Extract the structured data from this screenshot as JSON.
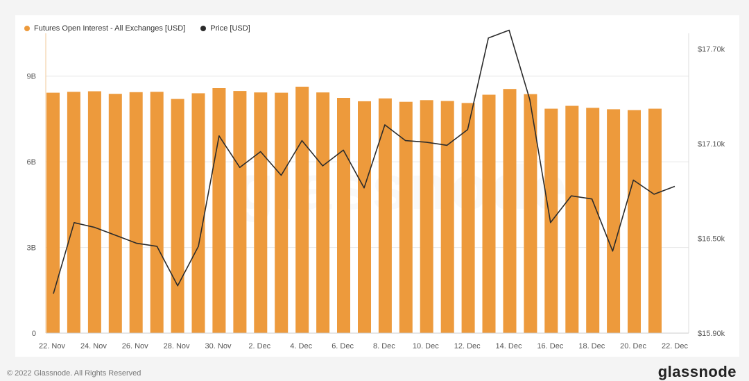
{
  "legend": {
    "oi_label": "Futures Open Interest - All Exchanges [USD]",
    "price_label": "Price [USD]"
  },
  "colors": {
    "bar": "#ED9A3C",
    "line": "#2b2b2b",
    "grid": "#e6e6e6",
    "axis_text": "#555555"
  },
  "footer": {
    "copyright": "© 2022 Glassnode. All Rights Reserved",
    "brand": "glassnode"
  },
  "watermark": "glassnode",
  "chart_data": {
    "type": "bar",
    "x_tick_labels": [
      "22. Nov",
      "24. Nov",
      "26. Nov",
      "28. Nov",
      "30. Nov",
      "2. Dec",
      "4. Dec",
      "6. Dec",
      "8. Dec",
      "10. Dec",
      "12. Dec",
      "14. Dec",
      "16. Dec",
      "18. Dec",
      "20. Dec",
      "22. Dec"
    ],
    "y_left": {
      "ticks": [
        0,
        3,
        6,
        9
      ],
      "tick_labels": [
        "0",
        "3B",
        "6B",
        "9B"
      ],
      "ylim": [
        0,
        10.5
      ]
    },
    "y_right": {
      "ticks": [
        15.9,
        16.5,
        17.1,
        17.7
      ],
      "tick_labels": [
        "$15.90k",
        "$16.50k",
        "$17.10k",
        "$17.70k"
      ],
      "ylim": [
        15.9,
        17.8
      ]
    },
    "series": [
      {
        "name": "Futures Open Interest - All Exchanges [USD]",
        "type": "bar",
        "axis": "left",
        "values": [
          8.42,
          8.45,
          8.47,
          8.38,
          8.44,
          8.45,
          8.2,
          8.4,
          8.58,
          8.48,
          8.43,
          8.42,
          8.63,
          8.43,
          8.24,
          8.12,
          8.22,
          8.1,
          8.16,
          8.13,
          8.06,
          8.35,
          8.55,
          8.37,
          7.86,
          7.96,
          7.89,
          7.84,
          7.81,
          7.86
        ]
      },
      {
        "name": "Price [USD]",
        "type": "line",
        "axis": "right",
        "values": [
          16.15,
          16.6,
          16.57,
          16.52,
          16.47,
          16.45,
          16.2,
          16.45,
          17.15,
          16.95,
          17.05,
          16.9,
          17.12,
          16.96,
          17.06,
          16.82,
          17.22,
          17.12,
          17.11,
          17.09,
          17.19,
          17.77,
          17.82,
          17.38,
          16.6,
          16.77,
          16.75,
          16.42,
          16.87,
          16.78,
          16.83
        ]
      }
    ]
  }
}
